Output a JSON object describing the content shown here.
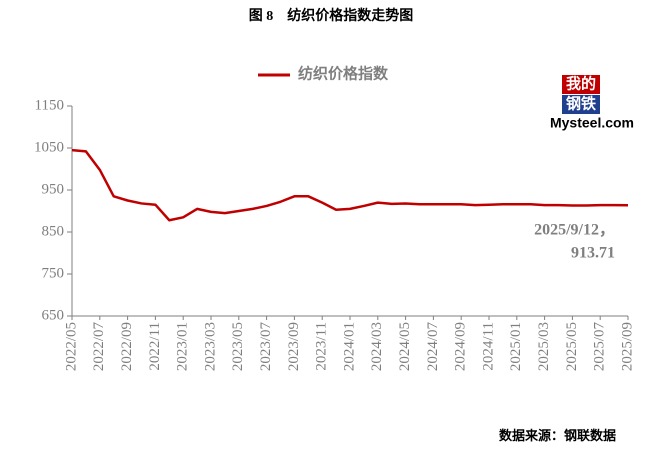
{
  "chart_data": {
    "type": "line",
    "title": "图 8　纺织价格指数走势图",
    "categories": [
      "2022/05",
      null,
      "2022/07",
      null,
      "2022/09",
      null,
      "2022/11",
      null,
      "2023/01",
      null,
      "2023/03",
      null,
      "2023/05",
      null,
      "2023/07",
      null,
      "2023/09",
      null,
      "2023/11",
      null,
      "2024/01",
      null,
      "2024/03",
      null,
      "2024/05",
      null,
      "2024/07",
      null,
      "2024/09",
      null,
      "2024/11",
      null,
      "2025/01",
      null,
      "2025/03",
      null,
      "2025/05",
      null,
      "2025/07",
      null,
      "2025/09"
    ],
    "series": [
      {
        "name": "纺织价格指数",
        "color": "#c00000",
        "values": [
          1045,
          1042,
          998,
          935,
          925,
          918,
          915,
          878,
          885,
          905,
          898,
          895,
          900,
          905,
          912,
          922,
          935,
          935,
          920,
          903,
          905,
          912,
          920,
          917,
          918,
          916,
          916,
          916,
          916,
          914,
          915,
          916,
          916,
          916,
          914,
          914,
          913,
          913,
          914,
          914,
          913.71
        ]
      }
    ],
    "ylim": [
      650,
      1150
    ],
    "yticks": [
      650,
      750,
      850,
      950,
      1050,
      1150
    ],
    "grid": false,
    "legend": "top",
    "annotation": [
      "2025/9/12，",
      "913.71"
    ],
    "source": "数据来源：钢联数据",
    "logo": [
      "我的",
      "钢铁",
      "Mysteel.com"
    ]
  }
}
